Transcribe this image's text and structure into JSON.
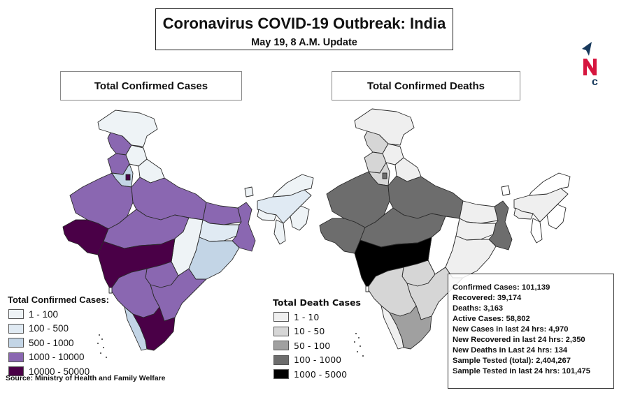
{
  "header": {
    "title": "Coronavirus COVID-19 Outbreak: India",
    "subtitle": "May 19, 8 A.M. Update"
  },
  "logo": {
    "letters": "NC",
    "colors": {
      "navy": "#17395c",
      "red": "#d6163f"
    }
  },
  "panels": {
    "cases_title": "Total Confirmed Cases",
    "deaths_title": "Total Confirmed Deaths"
  },
  "legend_cases": {
    "title": "Total Confirmed Cases:",
    "items": [
      {
        "label": "1 - 100",
        "color": "#eef3f6"
      },
      {
        "label": "100 - 500",
        "color": "#e0eaf3"
      },
      {
        "label": "500 - 1000",
        "color": "#c3d5e6"
      },
      {
        "label": "1000 - 10000",
        "color": "#8a67b1"
      },
      {
        "label": "10000 - 50000",
        "color": "#4a0047"
      }
    ]
  },
  "legend_deaths": {
    "title": "Total Death Cases",
    "items": [
      {
        "label": "1 - 10",
        "color": "#efefef"
      },
      {
        "label": "10 - 50",
        "color": "#d6d6d6"
      },
      {
        "label": "50 - 100",
        "color": "#a0a0a0"
      },
      {
        "label": "100 - 1000",
        "color": "#6d6d6d"
      },
      {
        "label": "1000 - 5000",
        "color": "#000000"
      }
    ]
  },
  "source": "Source: Ministry of Health and Family Welfare",
  "stats": [
    "Confirmed Cases: 101,139",
    "Recovered: 39,174",
    "Deaths: 3,163",
    "Active Cases:  58,802",
    "New Cases in last 24 hrs: 4,970",
    "New Recovered in last 24 hrs: 2,350",
    "New Deaths in Last 24 hrs: 134",
    "Sample Tested (total): 2,404,267",
    "Sample Tested in last 24 hrs: 101,475"
  ],
  "regions": [
    {
      "name": "jammu-kashmir-ladakh",
      "cases_class": 0,
      "deaths_class": 0
    },
    {
      "name": "jammu-kashmir",
      "cases_class": 3,
      "deaths_class": 1
    },
    {
      "name": "himachal-pradesh",
      "cases_class": 0,
      "deaths_class": 0
    },
    {
      "name": "punjab",
      "cases_class": 3,
      "deaths_class": 1
    },
    {
      "name": "haryana",
      "cases_class": 2,
      "deaths_class": 1
    },
    {
      "name": "delhi",
      "cases_class": 4,
      "deaths_class": 3
    },
    {
      "name": "uttarakhand",
      "cases_class": 0,
      "deaths_class": 0
    },
    {
      "name": "rajasthan",
      "cases_class": 3,
      "deaths_class": 3
    },
    {
      "name": "uttar-pradesh",
      "cases_class": 3,
      "deaths_class": 3
    },
    {
      "name": "gujarat",
      "cases_class": 4,
      "deaths_class": 3
    },
    {
      "name": "madhya-pradesh",
      "cases_class": 3,
      "deaths_class": 3
    },
    {
      "name": "bihar",
      "cases_class": 3,
      "deaths_class": 0
    },
    {
      "name": "jharkhand",
      "cases_class": 1,
      "deaths_class": 0
    },
    {
      "name": "west-bengal",
      "cases_class": 3,
      "deaths_class": 3
    },
    {
      "name": "chhattisgarh",
      "cases_class": 0,
      "deaths_class": -1
    },
    {
      "name": "odisha",
      "cases_class": 2,
      "deaths_class": 0
    },
    {
      "name": "maharashtra",
      "cases_class": 4,
      "deaths_class": 4
    },
    {
      "name": "telangana",
      "cases_class": 3,
      "deaths_class": 1
    },
    {
      "name": "andhra-pradesh",
      "cases_class": 3,
      "deaths_class": 1
    },
    {
      "name": "karnataka",
      "cases_class": 3,
      "deaths_class": 1
    },
    {
      "name": "kerala",
      "cases_class": 2,
      "deaths_class": 0
    },
    {
      "name": "tamil-nadu",
      "cases_class": 4,
      "deaths_class": 2
    },
    {
      "name": "sikkim",
      "cases_class": 0,
      "deaths_class": -1
    },
    {
      "name": "assam",
      "cases_class": 1,
      "deaths_class": 0
    },
    {
      "name": "arunachal-pradesh",
      "cases_class": 0,
      "deaths_class": -1
    },
    {
      "name": "meghalaya",
      "cases_class": 0,
      "deaths_class": 0
    },
    {
      "name": "north-east-small",
      "cases_class": 0,
      "deaths_class": -1
    },
    {
      "name": "tripura",
      "cases_class": 0,
      "deaths_class": -1
    },
    {
      "name": "goa",
      "cases_class": 0,
      "deaths_class": -1
    }
  ]
}
